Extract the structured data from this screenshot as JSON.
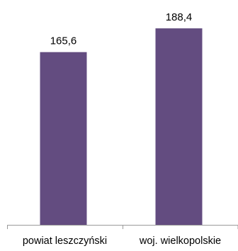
{
  "chart_data": {
    "type": "bar",
    "categories": [
      "powiat leszczyński",
      "woj. wielkopolskie"
    ],
    "values": [
      165.6,
      188.4
    ],
    "value_labels": [
      "165,6",
      "188,4"
    ],
    "title": "",
    "xlabel": "",
    "ylabel": "",
    "ylim": [
      0,
      202
    ],
    "grid": false,
    "legend": "none",
    "bar_color": "#634C80",
    "axis_color": "#9a9a9a"
  }
}
